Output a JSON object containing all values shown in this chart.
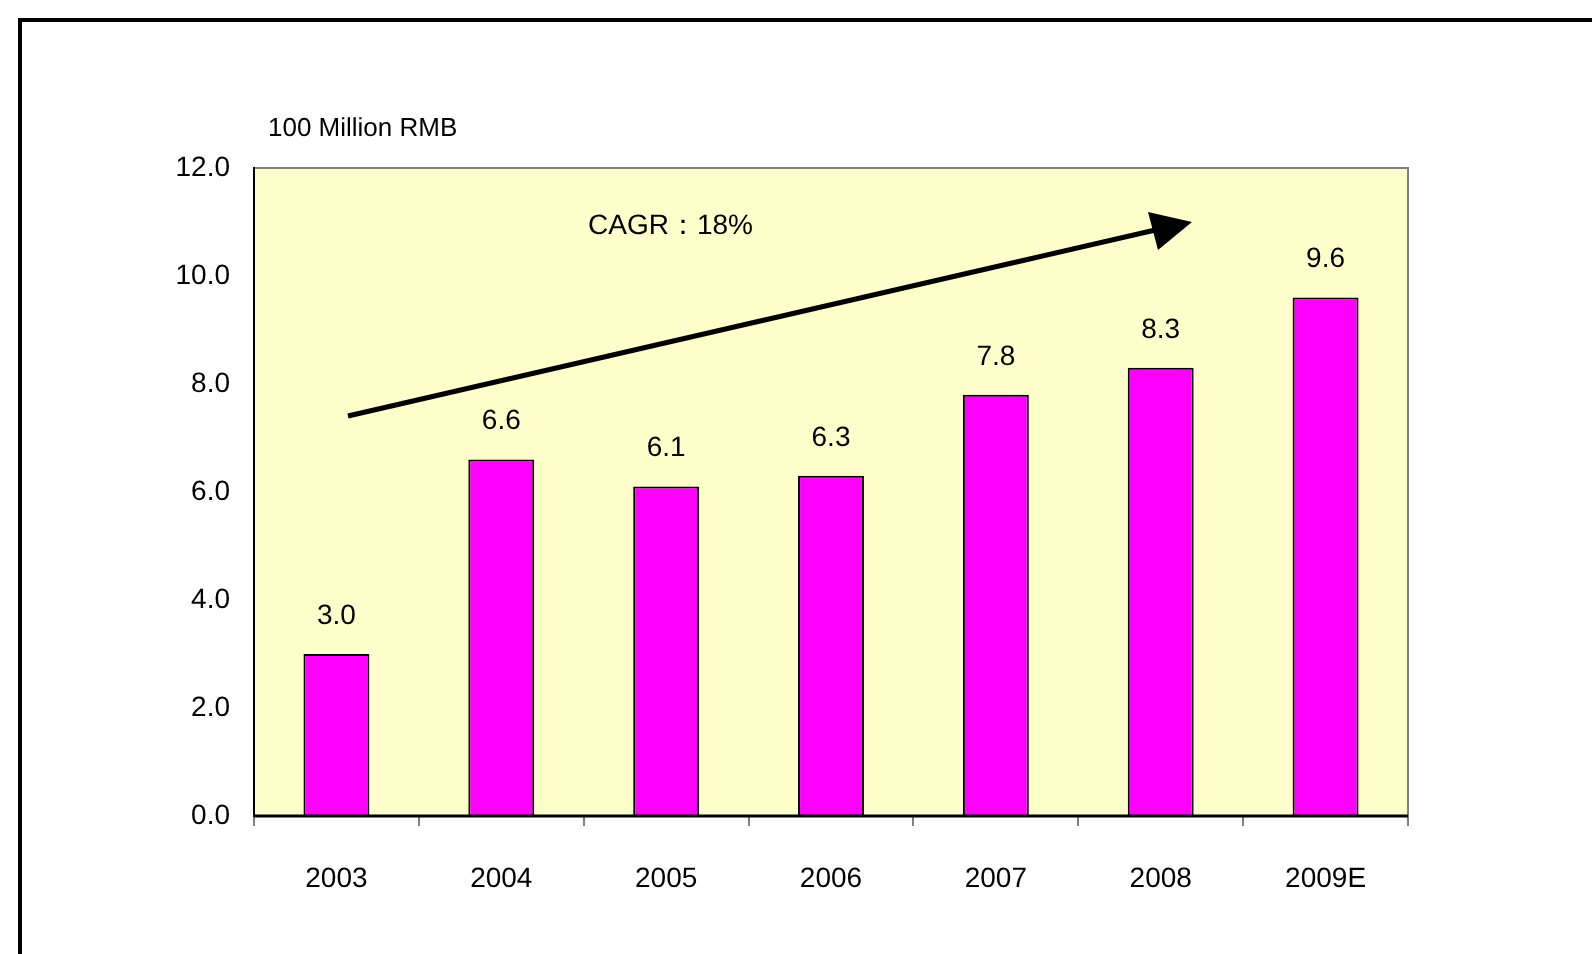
{
  "chart_data": {
    "type": "bar",
    "ylabel": "100 Million RMB",
    "annotations": [
      "CAGR：18%"
    ],
    "categories": [
      "2003",
      "2004",
      "2005",
      "2006",
      "2007",
      "2008",
      "2009E"
    ],
    "values": [
      3.0,
      6.6,
      6.1,
      6.3,
      7.8,
      8.3,
      9.6
    ],
    "color": "#ff00ff",
    "value_labels": [
      "3.0",
      "6.6",
      "6.1",
      "6.3",
      "7.8",
      "8.3",
      "9.6"
    ],
    "ylim": [
      0,
      12
    ],
    "yticks": [
      {
        "value": 0,
        "label": "0.0"
      },
      {
        "value": 2,
        "label": "2.0"
      },
      {
        "value": 4,
        "label": "4.0"
      },
      {
        "value": 6,
        "label": "6.0"
      },
      {
        "value": 8,
        "label": "8.0"
      },
      {
        "value": 10,
        "label": "10.0"
      },
      {
        "value": 12,
        "label": "12.0"
      }
    ],
    "grid": false,
    "legend": false
  }
}
